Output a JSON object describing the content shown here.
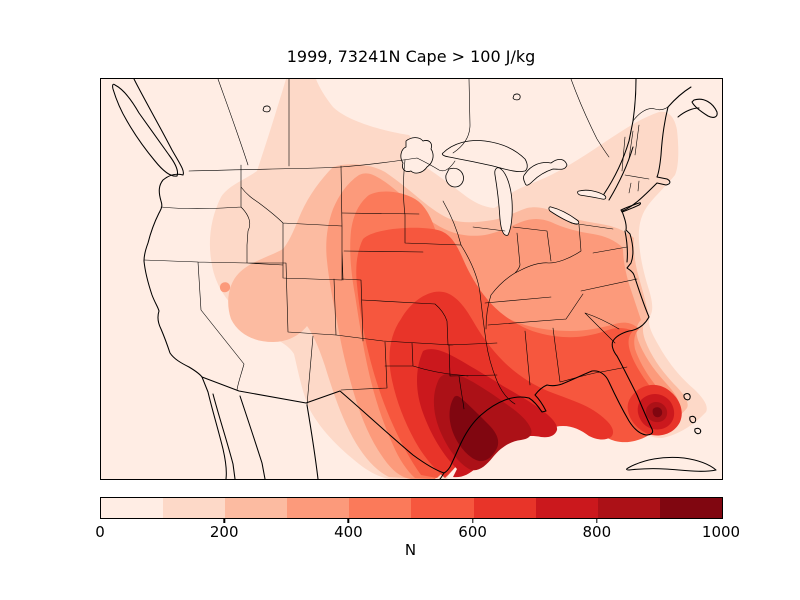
{
  "title": "1999, 73241N Cape > 100 J/kg",
  "chart_data": {
    "type": "filled-contour-map",
    "title": "1999, 73241N Cape > 100 J/kg",
    "year_shown_in_title": "1999",
    "threshold_shown_in_title": "Cape > 100 J/kg",
    "region": "Continental United States with southern Canada, northern Mexico, Gulf of Mexico, Cuba, the Bahamas and the Great Lakes",
    "projection_style": "conic basemap with state and national boundaries",
    "grid": "off",
    "colormap_name": "sequential reds, 10 discrete bands",
    "colorbar": {
      "orientation": "horizontal",
      "label": "N",
      "min": 0,
      "max": 1000,
      "ticks": [
        "0",
        "200",
        "400",
        "600",
        "800",
        "1000"
      ],
      "levels": [
        0,
        100,
        200,
        300,
        400,
        500,
        600,
        700,
        800,
        900,
        1000
      ],
      "colors": [
        "#ffede4",
        "#fdd9c8",
        "#fcbba1",
        "#fc9a7b",
        "#fb7a5a",
        "#f6573e",
        "#e83429",
        "#cb181d",
        "#ac1117",
        "#800610"
      ]
    },
    "features": [
      {
        "name": "primary maximum",
        "location": "eastern Texas and western Louisiana Gulf Coast",
        "value_range": "900-1000"
      },
      {
        "name": "secondary maximum",
        "location": "southern Florida peninsula and adjacent Atlantic waters",
        "value_range": "800-1000"
      },
      {
        "name": "plains ridge",
        "location": "Great Plains from Texas panhandle north to the Dakotas and eastern Montana",
        "value_range": "300-500"
      },
      {
        "name": "southeast ridge",
        "location": "Louisiana, Mississippi, Alabama, Georgia and coastal Carolinas",
        "value_range": "400-700"
      },
      {
        "name": "great basin local maximum",
        "location": "Nevada and Utah",
        "value_range": "200-300"
      },
      {
        "name": "background minimum",
        "location": "Pacific coast, Canada, far Northeast, Mexico interior and oceans",
        "value_range": "0-100"
      }
    ],
    "boundaries_shown": [
      "coastlines",
      "US state borders",
      "US-Canada border",
      "US-Mexico border",
      "Great Lakes",
      "Vancouver Island",
      "Baja California",
      "Cuba",
      "Bahamas"
    ]
  },
  "frame_color": "#000000",
  "background_color": "#ffffff"
}
